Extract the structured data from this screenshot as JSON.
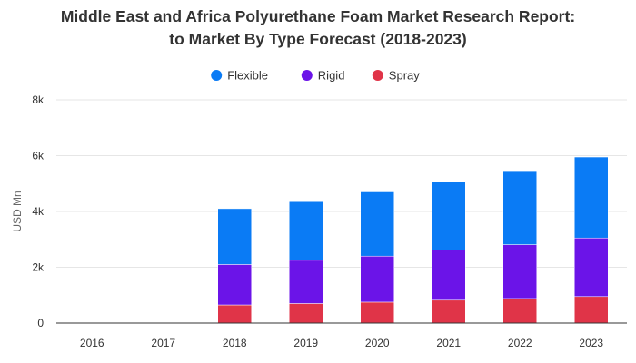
{
  "chart_data": {
    "type": "bar",
    "stacked": true,
    "title_lines": [
      "Middle East and Africa Polyurethane Foam Market Research Report:",
      "to Market By Type Forecast (2018-2023)"
    ],
    "xlabel": "",
    "ylabel": "USD Mn",
    "ylim": [
      0,
      8000
    ],
    "y_ticks": [
      0,
      2000,
      4000,
      6000,
      8000
    ],
    "y_tick_labels": [
      "0",
      "2k",
      "4k",
      "6k",
      "8k"
    ],
    "grid": true,
    "legend_position": "top-center",
    "categories": [
      "2016",
      "2017",
      "2018",
      "2019",
      "2020",
      "2021",
      "2022",
      "2023"
    ],
    "series": [
      {
        "name": "Spray",
        "color": "#e03448",
        "values": [
          null,
          null,
          650,
          700,
          750,
          820,
          880,
          950
        ]
      },
      {
        "name": "Rigid",
        "color": "#6b14e8",
        "values": [
          null,
          null,
          1450,
          1550,
          1650,
          1800,
          1930,
          2100
        ]
      },
      {
        "name": "Flexible",
        "color": "#0a7bf5",
        "values": [
          null,
          null,
          2000,
          2100,
          2300,
          2450,
          2650,
          2900
        ]
      }
    ],
    "legend_order": [
      "Flexible",
      "Rigid",
      "Spray"
    ]
  }
}
